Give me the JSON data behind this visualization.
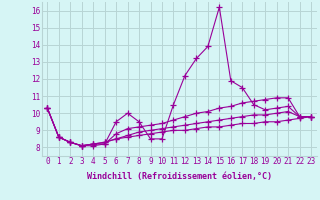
{
  "xlabel": "Windchill (Refroidissement éolien,°C)",
  "ylabel": "",
  "x": [
    0,
    1,
    2,
    3,
    4,
    5,
    6,
    7,
    8,
    9,
    10,
    11,
    12,
    13,
    14,
    15,
    16,
    17,
    18,
    19,
    20,
    21,
    22,
    23
  ],
  "lines": [
    [
      10.3,
      8.6,
      8.3,
      8.1,
      8.1,
      8.2,
      9.5,
      10.0,
      9.5,
      8.5,
      8.5,
      10.5,
      12.2,
      13.2,
      13.9,
      16.2,
      11.9,
      11.5,
      10.5,
      10.2,
      10.3,
      10.4,
      9.8,
      9.8
    ],
    [
      10.3,
      8.6,
      8.3,
      8.1,
      8.2,
      8.2,
      8.8,
      9.1,
      9.2,
      9.3,
      9.4,
      9.6,
      9.8,
      10.0,
      10.1,
      10.3,
      10.4,
      10.6,
      10.7,
      10.8,
      10.9,
      10.9,
      9.8,
      9.8
    ],
    [
      10.3,
      8.6,
      8.3,
      8.1,
      8.2,
      8.3,
      8.5,
      8.7,
      8.9,
      9.0,
      9.1,
      9.2,
      9.3,
      9.4,
      9.5,
      9.6,
      9.7,
      9.8,
      9.9,
      9.9,
      10.0,
      10.1,
      9.8,
      9.8
    ],
    [
      10.3,
      8.6,
      8.3,
      8.1,
      8.2,
      8.3,
      8.5,
      8.6,
      8.7,
      8.8,
      8.9,
      9.0,
      9.0,
      9.1,
      9.2,
      9.2,
      9.3,
      9.4,
      9.4,
      9.5,
      9.5,
      9.6,
      9.7,
      9.8
    ]
  ],
  "line_color": "#990099",
  "marker": "+",
  "markersize": 4,
  "linewidth": 0.8,
  "bg_color": "#d6f5f5",
  "grid_color": "#b8d4d4",
  "ylim": [
    7.5,
    16.5
  ],
  "yticks": [
    8,
    9,
    10,
    11,
    12,
    13,
    14,
    15,
    16
  ],
  "xticks": [
    0,
    1,
    2,
    3,
    4,
    5,
    6,
    7,
    8,
    9,
    10,
    11,
    12,
    13,
    14,
    15,
    16,
    17,
    18,
    19,
    20,
    21,
    22,
    23
  ],
  "tick_fontsize": 5.5,
  "label_fontsize": 6.0
}
